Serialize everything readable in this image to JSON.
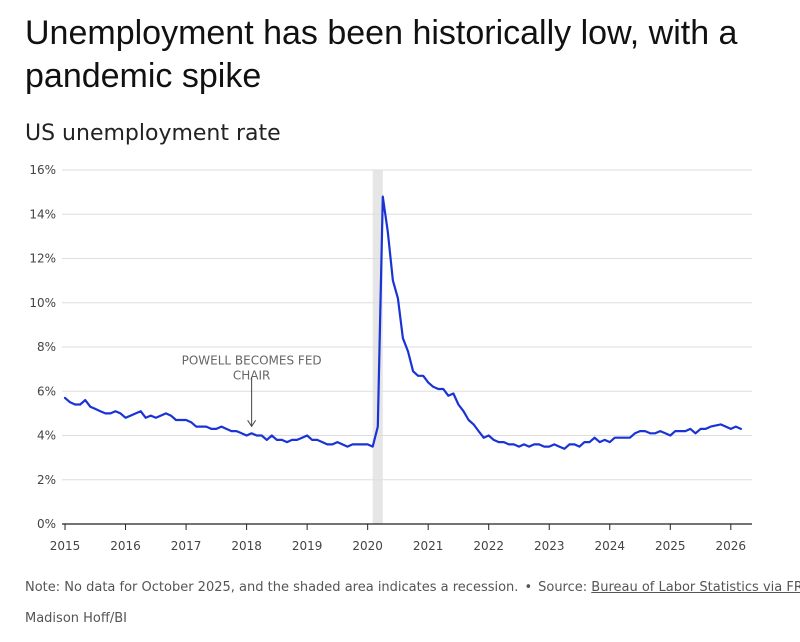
{
  "header": {
    "title": "Unemployment has been historically low, with a pandemic spike",
    "subtitle": "US unemployment rate"
  },
  "footer": {
    "note": "Note: No data for October 2025, and the shaded area indicates a recession.",
    "separator": "•",
    "source_prefix": "Source:",
    "source_link": "Bureau of Labor Statistics via FRED",
    "credit": "Madison Hoff/BI"
  },
  "chart_data": {
    "type": "line",
    "title": "US unemployment rate",
    "xlabel": "",
    "ylabel": "",
    "xlim": [
      2014.95,
      2026.35
    ],
    "ylim": [
      0,
      16
    ],
    "x_ticks": [
      2015,
      2016,
      2017,
      2018,
      2019,
      2020,
      2021,
      2022,
      2023,
      2024,
      2025,
      2026
    ],
    "x_tick_labels": [
      "2015",
      "2016",
      "2017",
      "2018",
      "2019",
      "2020",
      "2021",
      "2022",
      "2023",
      "2024",
      "2025",
      "2026"
    ],
    "y_ticks": [
      0,
      2,
      4,
      6,
      8,
      10,
      12,
      14,
      16
    ],
    "y_tick_labels": [
      "0%",
      "2%",
      "4%",
      "6%",
      "8%",
      "10%",
      "12%",
      "14%",
      "16%"
    ],
    "grid": "horizontal",
    "line_color": "#1a33d6",
    "recession_color": "#e6e6e6",
    "recession": [
      2020.083,
      2020.25
    ],
    "annotation": {
      "lines": [
        "POWELL BECOMES FED",
        "CHAIR"
      ],
      "x": 2018.083,
      "y": 4.1
    },
    "series": [
      {
        "values": [
          [
            2015.0,
            5.7
          ],
          [
            2015.083,
            5.5
          ],
          [
            2015.167,
            5.4
          ],
          [
            2015.25,
            5.4
          ],
          [
            2015.333,
            5.6
          ],
          [
            2015.417,
            5.3
          ],
          [
            2015.5,
            5.2
          ],
          [
            2015.583,
            5.1
          ],
          [
            2015.667,
            5.0
          ],
          [
            2015.75,
            5.0
          ],
          [
            2015.833,
            5.1
          ],
          [
            2015.917,
            5.0
          ],
          [
            2016.0,
            4.8
          ],
          [
            2016.083,
            4.9
          ],
          [
            2016.167,
            5.0
          ],
          [
            2016.25,
            5.1
          ],
          [
            2016.333,
            4.8
          ],
          [
            2016.417,
            4.9
          ],
          [
            2016.5,
            4.8
          ],
          [
            2016.583,
            4.9
          ],
          [
            2016.667,
            5.0
          ],
          [
            2016.75,
            4.9
          ],
          [
            2016.833,
            4.7
          ],
          [
            2016.917,
            4.7
          ],
          [
            2017.0,
            4.7
          ],
          [
            2017.083,
            4.6
          ],
          [
            2017.167,
            4.4
          ],
          [
            2017.25,
            4.4
          ],
          [
            2017.333,
            4.4
          ],
          [
            2017.417,
            4.3
          ],
          [
            2017.5,
            4.3
          ],
          [
            2017.583,
            4.4
          ],
          [
            2017.667,
            4.3
          ],
          [
            2017.75,
            4.2
          ],
          [
            2017.833,
            4.2
          ],
          [
            2017.917,
            4.1
          ],
          [
            2018.0,
            4.0
          ],
          [
            2018.083,
            4.1
          ],
          [
            2018.167,
            4.0
          ],
          [
            2018.25,
            4.0
          ],
          [
            2018.333,
            3.8
          ],
          [
            2018.417,
            4.0
          ],
          [
            2018.5,
            3.8
          ],
          [
            2018.583,
            3.8
          ],
          [
            2018.667,
            3.7
          ],
          [
            2018.75,
            3.8
          ],
          [
            2018.833,
            3.8
          ],
          [
            2018.917,
            3.9
          ],
          [
            2019.0,
            4.0
          ],
          [
            2019.083,
            3.8
          ],
          [
            2019.167,
            3.8
          ],
          [
            2019.25,
            3.7
          ],
          [
            2019.333,
            3.6
          ],
          [
            2019.417,
            3.6
          ],
          [
            2019.5,
            3.7
          ],
          [
            2019.583,
            3.6
          ],
          [
            2019.667,
            3.5
          ],
          [
            2019.75,
            3.6
          ],
          [
            2019.833,
            3.6
          ],
          [
            2019.917,
            3.6
          ],
          [
            2020.0,
            3.6
          ],
          [
            2020.083,
            3.5
          ],
          [
            2020.167,
            4.4
          ],
          [
            2020.25,
            14.8
          ],
          [
            2020.333,
            13.2
          ],
          [
            2020.417,
            11.0
          ],
          [
            2020.5,
            10.2
          ],
          [
            2020.583,
            8.4
          ],
          [
            2020.667,
            7.8
          ],
          [
            2020.75,
            6.9
          ],
          [
            2020.833,
            6.7
          ],
          [
            2020.917,
            6.7
          ],
          [
            2021.0,
            6.4
          ],
          [
            2021.083,
            6.2
          ],
          [
            2021.167,
            6.1
          ],
          [
            2021.25,
            6.1
          ],
          [
            2021.333,
            5.8
          ],
          [
            2021.417,
            5.9
          ],
          [
            2021.5,
            5.4
          ],
          [
            2021.583,
            5.1
          ],
          [
            2021.667,
            4.7
          ],
          [
            2021.75,
            4.5
          ],
          [
            2021.833,
            4.2
          ],
          [
            2021.917,
            3.9
          ],
          [
            2022.0,
            4.0
          ],
          [
            2022.083,
            3.8
          ],
          [
            2022.167,
            3.7
          ],
          [
            2022.25,
            3.7
          ],
          [
            2022.333,
            3.6
          ],
          [
            2022.417,
            3.6
          ],
          [
            2022.5,
            3.5
          ],
          [
            2022.583,
            3.6
          ],
          [
            2022.667,
            3.5
          ],
          [
            2022.75,
            3.6
          ],
          [
            2022.833,
            3.6
          ],
          [
            2022.917,
            3.5
          ],
          [
            2023.0,
            3.5
          ],
          [
            2023.083,
            3.6
          ],
          [
            2023.167,
            3.5
          ],
          [
            2023.25,
            3.4
          ],
          [
            2023.333,
            3.6
          ],
          [
            2023.417,
            3.6
          ],
          [
            2023.5,
            3.5
          ],
          [
            2023.583,
            3.7
          ],
          [
            2023.667,
            3.7
          ],
          [
            2023.75,
            3.9
          ],
          [
            2023.833,
            3.7
          ],
          [
            2023.917,
            3.8
          ],
          [
            2024.0,
            3.7
          ],
          [
            2024.083,
            3.9
          ],
          [
            2024.167,
            3.9
          ],
          [
            2024.25,
            3.9
          ],
          [
            2024.333,
            3.9
          ],
          [
            2024.417,
            4.1
          ],
          [
            2024.5,
            4.2
          ],
          [
            2024.583,
            4.2
          ],
          [
            2024.667,
            4.1
          ],
          [
            2024.75,
            4.1
          ],
          [
            2024.833,
            4.2
          ],
          [
            2024.917,
            4.1
          ],
          [
            2025.0,
            4.0
          ],
          [
            2025.083,
            4.2
          ],
          [
            2025.167,
            4.2
          ],
          [
            2025.25,
            4.2
          ],
          [
            2025.333,
            4.3
          ],
          [
            2025.417,
            4.1
          ],
          [
            2025.5,
            4.3
          ],
          [
            2025.583,
            4.3
          ],
          [
            2025.667,
            4.4
          ],
          [
            2025.833,
            4.5
          ],
          [
            2025.917,
            4.4
          ],
          [
            2026.0,
            4.3
          ],
          [
            2026.083,
            4.4
          ],
          [
            2026.167,
            4.3
          ]
        ]
      }
    ]
  }
}
